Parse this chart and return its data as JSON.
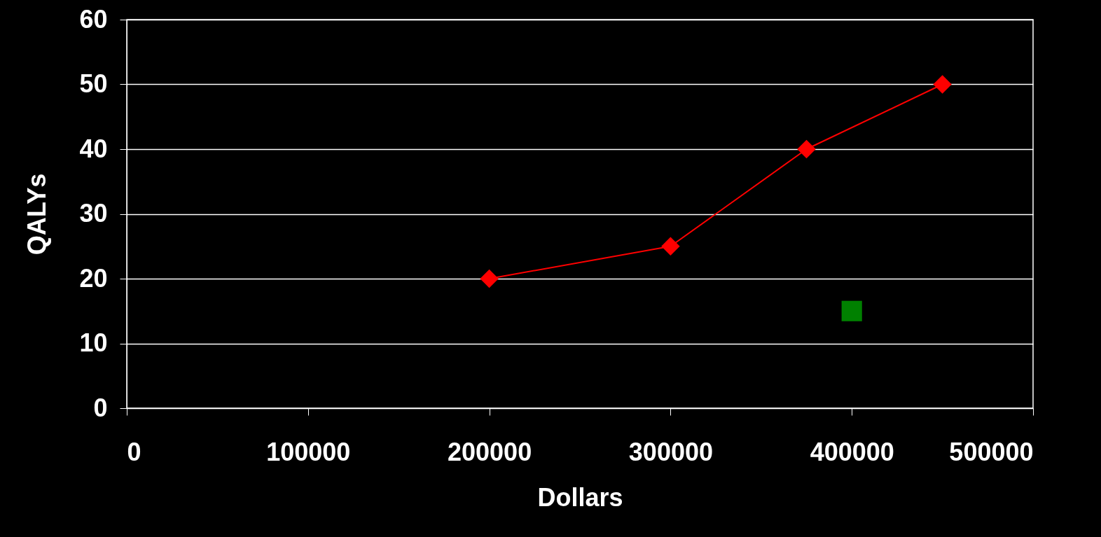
{
  "chart_data": {
    "type": "line",
    "xlabel": "Dollars",
    "ylabel": "QALYs",
    "xlim": [
      0,
      500000
    ],
    "xticks": [
      0,
      100000,
      200000,
      300000,
      400000,
      500000
    ],
    "ylim": [
      0,
      60
    ],
    "yticks": [
      0,
      10,
      20,
      30,
      40,
      50,
      60
    ],
    "grid": "y",
    "series": [
      {
        "color": "#ff0000",
        "marker": "diamond",
        "x": [
          200000,
          300000,
          375000,
          450000
        ],
        "values": [
          20,
          25,
          40,
          50
        ]
      },
      {
        "type": "scatter",
        "color": "#008000",
        "marker": "square",
        "x": [
          400000
        ],
        "values": [
          15
        ]
      }
    ]
  }
}
